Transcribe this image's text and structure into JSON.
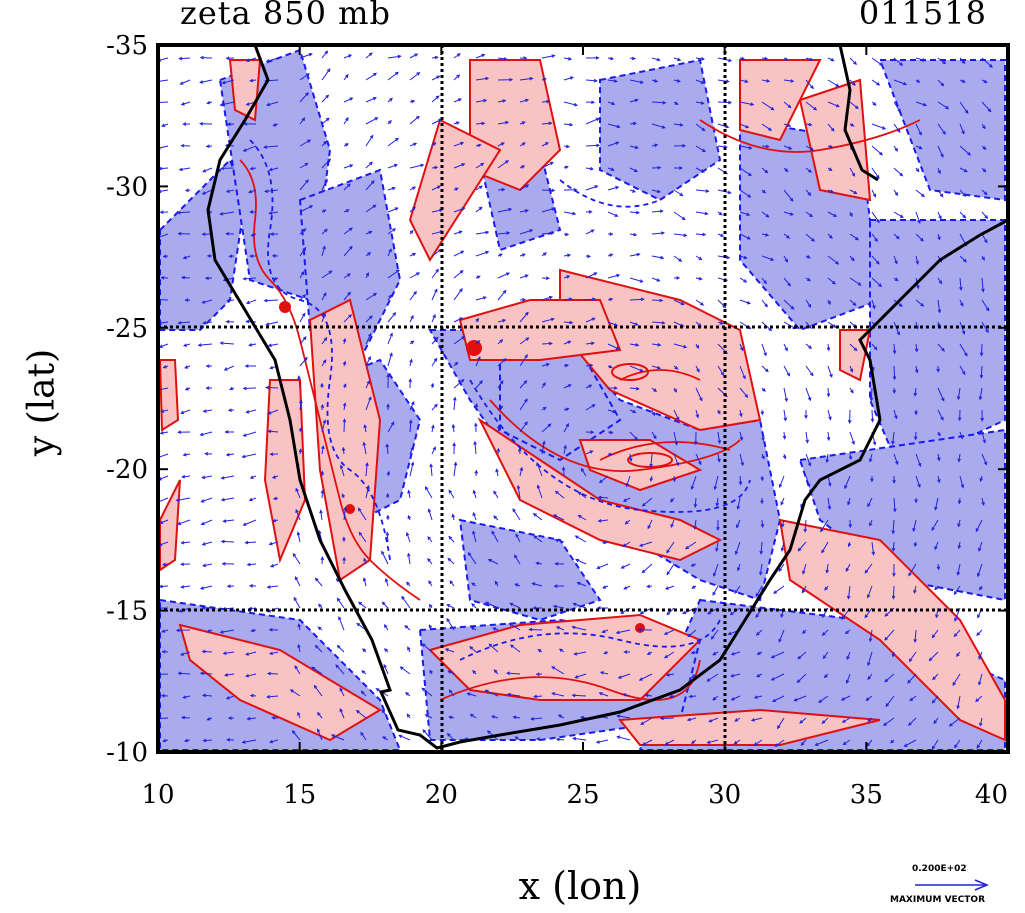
{
  "title_left": "zeta 850 mb",
  "title_right": "011518",
  "x_axis": {
    "label": "x (lon)",
    "ticks": [
      "10",
      "15",
      "20",
      "25",
      "30",
      "35",
      "40"
    ],
    "range": [
      10,
      40
    ]
  },
  "y_axis": {
    "label": "y (lat)",
    "ticks": [
      "-35",
      "-30",
      "-25",
      "-20",
      "-15",
      "-10"
    ],
    "range": [
      -35,
      -10
    ]
  },
  "grid_lines": {
    "lon": [
      20,
      30
    ],
    "lat": [
      -25,
      -15
    ]
  },
  "max_vector": {
    "value": "0.200E+02",
    "label": "MAXIMUM VECTOR"
  },
  "colors": {
    "positive_fill": "#f9c3c3",
    "positive_contour": "#e01010",
    "negative_fill": "#a9abee",
    "negative_contour": "#1a1aee",
    "vector": "#2222dd",
    "coastline": "#000000"
  }
}
